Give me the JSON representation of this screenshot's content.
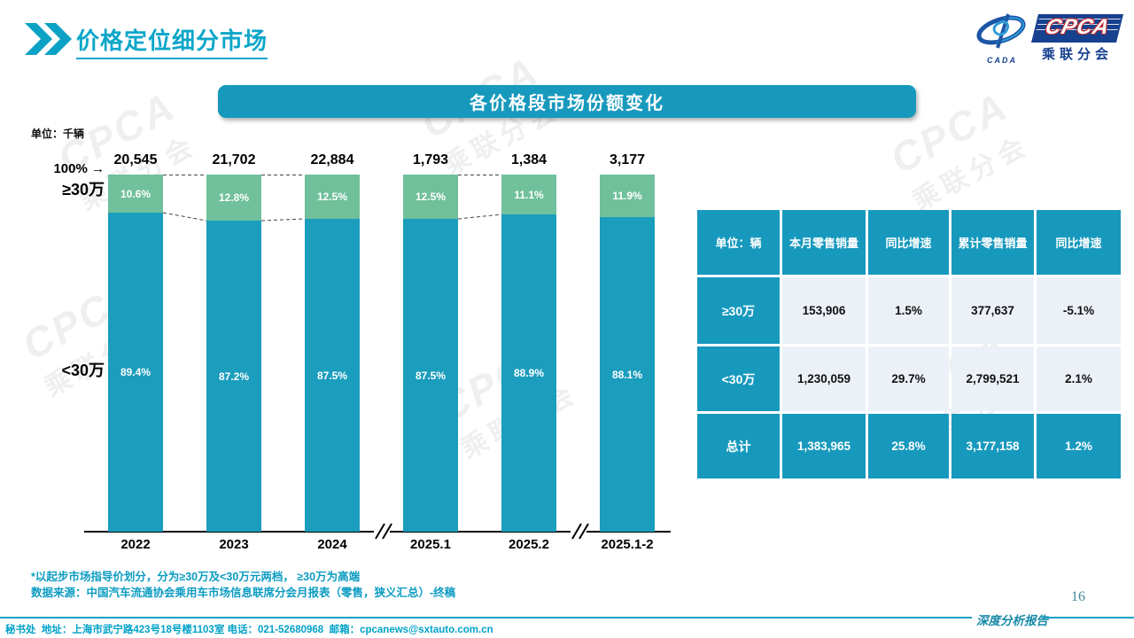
{
  "header": {
    "title": "价格定位细分市场"
  },
  "logo": {
    "cpca": "CPCA",
    "sub": "乘联分会",
    "cada": "CADA"
  },
  "chart_chip_title": "各价格段市场份额变化",
  "chart_labels": {
    "unit": "单位：千辆",
    "pct100": "100%",
    "arrow": "→"
  },
  "chart_data": {
    "type": "bar",
    "stacked_percent": true,
    "title": "各价格段市场份额变化",
    "unit": "千辆",
    "categories": [
      "2022",
      "2023",
      "2024",
      "2025.1",
      "2025.2",
      "2025.1-2"
    ],
    "totals": [
      20545,
      21702,
      22884,
      1793,
      1384,
      3177
    ],
    "series": [
      {
        "name": "≥30万",
        "color": "#70C09C",
        "values": [
          10.6,
          12.8,
          12.5,
          12.5,
          11.1,
          11.9
        ]
      },
      {
        "name": "<30万",
        "color": "#1B9DBD",
        "values": [
          89.4,
          87.2,
          87.5,
          87.5,
          88.9,
          88.1
        ]
      }
    ],
    "axis_breaks_after": [
      "2024",
      "2025.2"
    ],
    "ylim": [
      0,
      100
    ],
    "legend_position": "left-axis-labels",
    "grid": false
  },
  "table": {
    "unit_header": "单位：辆",
    "col_headers": [
      "本月零售销量",
      "同比增速",
      "累计零售销量",
      "同比增速"
    ],
    "rows": [
      {
        "label": "≥30万",
        "cells": [
          "153,906",
          "1.5%",
          "377,637",
          "-5.1%"
        ],
        "highlight": false
      },
      {
        "label": "<30万",
        "cells": [
          "1,230,059",
          "29.7%",
          "2,799,521",
          "2.1%"
        ],
        "highlight": false
      },
      {
        "label": "总计",
        "cells": [
          "1,383,965",
          "25.8%",
          "3,177,158",
          "1.2%"
        ],
        "highlight": true
      }
    ]
  },
  "footnotes": {
    "line1": "*以起步市场指导价划分，分为≥30万及<30万元两档， ≥30万为高端",
    "line2": "数据来源：中国汽车流通协会乘用车市场信息联席分会月报表（零售，狭义汇总）-终稿"
  },
  "footer": {
    "contact": "秘书处  地址：上海市武宁路423号18号楼1103室 电话：021-52680968  邮箱：cpcanews@sxtauto.com.cn",
    "report_label": "深度分析报告",
    "page_number": "16"
  },
  "watermark": {
    "line1": "CPCA",
    "line2": "乘联分会"
  },
  "colors": {
    "teal": "#1799BD",
    "green": "#70C09C",
    "title_teal": "#0CA6C9",
    "dark_blue": "#16418F",
    "red_outline": "#C22B2B",
    "table_cell_bg": "#ECF1F8"
  }
}
